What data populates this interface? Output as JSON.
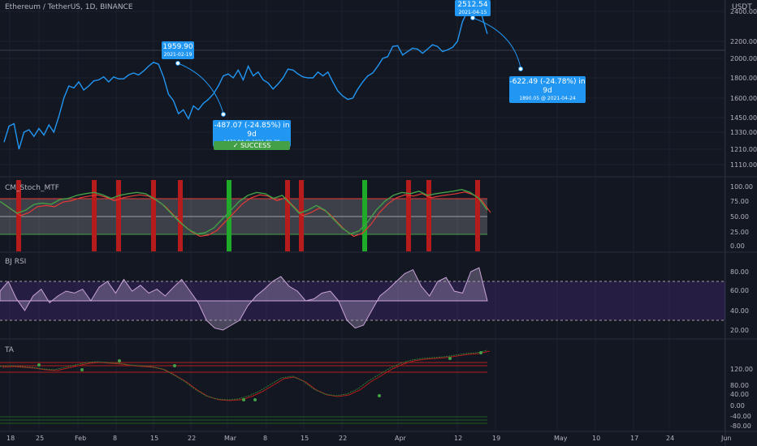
{
  "header": {
    "symbol_title": "Ethereum / TetherUS, 1D, BINANCE",
    "currency": "USDT"
  },
  "price_axis": {
    "ticks": [
      "2400.00",
      "2200.00",
      "2000.00",
      "1800.00",
      "1600.00",
      "1450.00",
      "1330.00",
      "1210.00",
      "1110.00"
    ],
    "tick_values": [
      2400,
      2200,
      2000,
      1800,
      1600,
      1450,
      1330,
      1210,
      1110
    ]
  },
  "time_axis": {
    "labels": [
      "18",
      "25",
      "Feb",
      "8",
      "15",
      "22",
      "Mar",
      "8",
      "15",
      "22",
      "Apr",
      "12",
      "19",
      "May",
      "10",
      "17",
      "24",
      "Jun"
    ]
  },
  "annotations": {
    "peak1": {
      "price": "1959.90",
      "date": "2021-02-19"
    },
    "drop1": {
      "change": "-487.07 (-24.85%) in 9d",
      "detail": "1472.84 @ 2021-02-28"
    },
    "success": "✓ SUCCESS",
    "peak2": {
      "price": "2512.54",
      "date": "2021-04-15"
    },
    "drop2": {
      "change": "-622.49 (-24.78%) in 9d",
      "detail": "1890.05 @ 2021-04-24"
    }
  },
  "panes": {
    "stoch": {
      "title": "CM_Stoch_MTF",
      "ticks": [
        "100.00",
        "75.00",
        "50.00",
        "25.00",
        "0.00"
      ]
    },
    "rsi": {
      "title": "BJ RSI",
      "ticks": [
        "80.00",
        "60.00",
        "40.00",
        "20.00"
      ]
    },
    "ta": {
      "title": "TA",
      "ticks": [
        "120.00",
        "80.00",
        "40.00",
        "0.00",
        "-40.00",
        "-80.00"
      ]
    }
  },
  "chart_data": {
    "type": "line",
    "title": "Ethereum / TetherUS, 1D, BINANCE",
    "series": [
      {
        "values": [
          1260,
          1380,
          1400,
          1210,
          1330,
          1350,
          1300,
          1360,
          1310,
          1390,
          1330,
          1460,
          1600,
          1720,
          1700,
          1760,
          1680,
          1720,
          1770,
          1780,
          1810,
          1760,
          1810,
          1790,
          1790,
          1830,
          1850,
          1830,
          1870,
          1920,
          1960,
          1940,
          1810,
          1640,
          1580,
          1480,
          1510,
          1440,
          1540,
          1510,
          1560,
          1590,
          1640,
          1720,
          1820,
          1840,
          1800,
          1880,
          1780,
          1920,
          1820,
          1860,
          1780,
          1750,
          1690,
          1740,
          1800,
          1890,
          1880,
          1840,
          1810,
          1800,
          1800,
          1860,
          1820,
          1860,
          1760,
          1670,
          1620,
          1590,
          1600,
          1690,
          1760,
          1820,
          1850,
          1920,
          2000,
          2020,
          2140,
          2150,
          2040,
          2080,
          2120,
          2110,
          2060,
          2110,
          2160,
          2140,
          2080,
          2100,
          2130,
          2200,
          2330,
          2400,
          2460,
          2512,
          2360,
          2250
        ]
      }
    ],
    "ylim": [
      1050,
      2520
    ]
  }
}
